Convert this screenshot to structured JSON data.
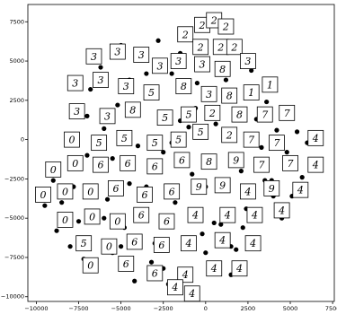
{
  "chart_data": {
    "type": "scatter",
    "xlim": [
      -10500,
      7600
    ],
    "ylim": [
      -10300,
      8600
    ],
    "xticks": [
      {
        "value": -10000,
        "label": "−10000"
      },
      {
        "value": -7500,
        "label": "−7500"
      },
      {
        "value": -5000,
        "label": "−5000"
      },
      {
        "value": -2500,
        "label": "−2500"
      },
      0,
      2500,
      5000,
      7500
    ],
    "yticks": [
      {
        "value": -10000,
        "label": "−10000"
      },
      {
        "value": -7500,
        "label": "−7500"
      },
      {
        "value": -5000,
        "label": "−5000"
      },
      {
        "value": -2500,
        "label": "−2500"
      },
      0,
      2500,
      5000,
      7500
    ],
    "color": "#000000",
    "x": [
      -9500,
      -9000,
      -8800,
      -8500,
      -8000,
      -7800,
      -7500,
      -7200,
      -7000,
      -6800,
      -6500,
      -6200,
      -6000,
      -5800,
      -5500,
      -5200,
      -5000,
      -4800,
      -4500,
      -4200,
      -4000,
      -3800,
      -3500,
      -3200,
      -3000,
      -2800,
      -2500,
      -2200,
      -2000,
      -1800,
      -1500,
      -1200,
      -1000,
      -800,
      -500,
      -200,
      0,
      300,
      600,
      900,
      1200,
      1500,
      1800,
      2100,
      2400,
      2700,
      3000,
      3300,
      3600,
      3900,
      4200,
      4500,
      4800,
      5100,
      5400,
      5700,
      6000,
      6300,
      -6000,
      -4500,
      -3000,
      -1500,
      0,
      1500,
      3000,
      -7000,
      -5000,
      -2000,
      500,
      2500,
      4000,
      -3500,
      -1000,
      1800,
      -5500,
      -2500,
      3500,
      -8000,
      -600,
      2200
    ],
    "values": [
      -4200,
      -2600,
      -5800,
      -4000,
      -6800,
      -3000,
      -5200,
      -7600,
      -1000,
      3200,
      -8200,
      4600,
      700,
      -3800,
      -7200,
      2200,
      6000,
      -5600,
      3800,
      -9000,
      -400,
      5100,
      -3000,
      -7800,
      2800,
      6300,
      -800,
      -9200,
      4200,
      -4000,
      1200,
      -8800,
      6900,
      -2200,
      3600,
      -6000,
      -7200,
      7800,
      1000,
      -5400,
      3800,
      -8600,
      6200,
      -2000,
      -4400,
      4400,
      -6400,
      -500,
      2400,
      -2600,
      600,
      -5000,
      -800,
      -3600,
      500,
      -2400,
      -200,
      -1300,
      -5000,
      -2800,
      -6600,
      5500,
      -3000,
      -6800,
      1300,
      1500,
      -6800,
      -200,
      -5300,
      -3200,
      -3600,
      4200,
      800,
      -7000,
      -1200,
      -8200,
      -2600,
      -3000,
      2000,
      -5600
    ],
    "annotations": [
      {
        "x": -1200,
        "y": 6700,
        "text": "2"
      },
      {
        "x": -200,
        "y": 7300,
        "text": "2"
      },
      {
        "x": 500,
        "y": 7600,
        "text": "2"
      },
      {
        "x": 1200,
        "y": 7200,
        "text": "2"
      },
      {
        "x": -300,
        "y": 5900,
        "text": "2"
      },
      {
        "x": 900,
        "y": 5900,
        "text": "2"
      },
      {
        "x": 1700,
        "y": 5900,
        "text": "2"
      },
      {
        "x": -6600,
        "y": 5300,
        "text": "3"
      },
      {
        "x": -5200,
        "y": 5600,
        "text": "3"
      },
      {
        "x": -3800,
        "y": 5400,
        "text": "3"
      },
      {
        "x": -2700,
        "y": 4700,
        "text": "3"
      },
      {
        "x": -1600,
        "y": 5000,
        "text": "3"
      },
      {
        "x": -200,
        "y": 4800,
        "text": "3"
      },
      {
        "x": 1000,
        "y": 4500,
        "text": "8"
      },
      {
        "x": 2500,
        "y": 5000,
        "text": "3"
      },
      {
        "x": -7700,
        "y": 3600,
        "text": "3"
      },
      {
        "x": -6200,
        "y": 3800,
        "text": "3"
      },
      {
        "x": -4700,
        "y": 3400,
        "text": "3"
      },
      {
        "x": -3200,
        "y": 3000,
        "text": "5"
      },
      {
        "x": -1300,
        "y": 3400,
        "text": "8"
      },
      {
        "x": 200,
        "y": 2900,
        "text": "3"
      },
      {
        "x": 1400,
        "y": 2800,
        "text": "8"
      },
      {
        "x": 2700,
        "y": 3000,
        "text": "1"
      },
      {
        "x": 3800,
        "y": 3500,
        "text": "1"
      },
      {
        "x": -7600,
        "y": 1800,
        "text": "3"
      },
      {
        "x": -5800,
        "y": 1500,
        "text": "3"
      },
      {
        "x": -4300,
        "y": 1900,
        "text": "8"
      },
      {
        "x": -2400,
        "y": 1400,
        "text": "5"
      },
      {
        "x": -1000,
        "y": 1600,
        "text": "5"
      },
      {
        "x": 400,
        "y": 1700,
        "text": "2"
      },
      {
        "x": 2000,
        "y": 1600,
        "text": "8"
      },
      {
        "x": 3500,
        "y": 1600,
        "text": "7"
      },
      {
        "x": 4800,
        "y": 1700,
        "text": "7"
      },
      {
        "x": -7900,
        "y": 0,
        "text": "0"
      },
      {
        "x": -6300,
        "y": -200,
        "text": "5"
      },
      {
        "x": -4800,
        "y": 100,
        "text": "5"
      },
      {
        "x": -3000,
        "y": -200,
        "text": "5"
      },
      {
        "x": -1600,
        "y": 0,
        "text": "5"
      },
      {
        "x": -300,
        "y": 500,
        "text": "5"
      },
      {
        "x": 1400,
        "y": 300,
        "text": "2"
      },
      {
        "x": 2700,
        "y": 0,
        "text": "7"
      },
      {
        "x": 4200,
        "y": -200,
        "text": "7"
      },
      {
        "x": 6500,
        "y": 100,
        "text": "4"
      },
      {
        "x": -9000,
        "y": -1900,
        "text": "0"
      },
      {
        "x": -7700,
        "y": -1500,
        "text": "0"
      },
      {
        "x": -6200,
        "y": -1600,
        "text": "6"
      },
      {
        "x": -4600,
        "y": -1500,
        "text": "6"
      },
      {
        "x": -3000,
        "y": -1700,
        "text": "6"
      },
      {
        "x": -1400,
        "y": -1300,
        "text": "6"
      },
      {
        "x": 200,
        "y": -1400,
        "text": "8"
      },
      {
        "x": 1800,
        "y": -1300,
        "text": "9"
      },
      {
        "x": 3300,
        "y": -1600,
        "text": "7"
      },
      {
        "x": 5000,
        "y": -1500,
        "text": "7"
      },
      {
        "x": 6500,
        "y": -1600,
        "text": "4"
      },
      {
        "x": -9600,
        "y": -3500,
        "text": "0"
      },
      {
        "x": -8300,
        "y": -3300,
        "text": "0"
      },
      {
        "x": -6800,
        "y": -3300,
        "text": "0"
      },
      {
        "x": -5300,
        "y": -3100,
        "text": "6"
      },
      {
        "x": -3600,
        "y": -3500,
        "text": "6"
      },
      {
        "x": -2000,
        "y": -3300,
        "text": "6"
      },
      {
        "x": -400,
        "y": -3000,
        "text": "9"
      },
      {
        "x": 1000,
        "y": -2900,
        "text": "9"
      },
      {
        "x": 2500,
        "y": -3300,
        "text": "4"
      },
      {
        "x": 3900,
        "y": -3100,
        "text": "9"
      },
      {
        "x": 5600,
        "y": -3200,
        "text": "4"
      },
      {
        "x": -8300,
        "y": -5100,
        "text": "0"
      },
      {
        "x": -6700,
        "y": -4900,
        "text": "0"
      },
      {
        "x": -5200,
        "y": -5200,
        "text": "0"
      },
      {
        "x": -3800,
        "y": -4800,
        "text": "6"
      },
      {
        "x": -2300,
        "y": -5200,
        "text": "6"
      },
      {
        "x": -600,
        "y": -4800,
        "text": "4"
      },
      {
        "x": 1300,
        "y": -4800,
        "text": "4"
      },
      {
        "x": 2900,
        "y": -4800,
        "text": "4"
      },
      {
        "x": 4500,
        "y": -4500,
        "text": "4"
      },
      {
        "x": -7200,
        "y": -6600,
        "text": "5"
      },
      {
        "x": -5700,
        "y": -6800,
        "text": "0"
      },
      {
        "x": -4200,
        "y": -6500,
        "text": "6"
      },
      {
        "x": -2600,
        "y": -6700,
        "text": "6"
      },
      {
        "x": -1000,
        "y": -6600,
        "text": "4"
      },
      {
        "x": 1000,
        "y": -6400,
        "text": "4"
      },
      {
        "x": 2800,
        "y": -6600,
        "text": "4"
      },
      {
        "x": -6800,
        "y": -8000,
        "text": "0"
      },
      {
        "x": -4700,
        "y": -7900,
        "text": "6"
      },
      {
        "x": -3000,
        "y": -8500,
        "text": "6"
      },
      {
        "x": -1200,
        "y": -8600,
        "text": "4"
      },
      {
        "x": 500,
        "y": -8200,
        "text": "4"
      },
      {
        "x": 2000,
        "y": -8200,
        "text": "4"
      },
      {
        "x": -1800,
        "y": -9400,
        "text": "4"
      },
      {
        "x": -800,
        "y": -9800,
        "text": "4"
      }
    ]
  }
}
